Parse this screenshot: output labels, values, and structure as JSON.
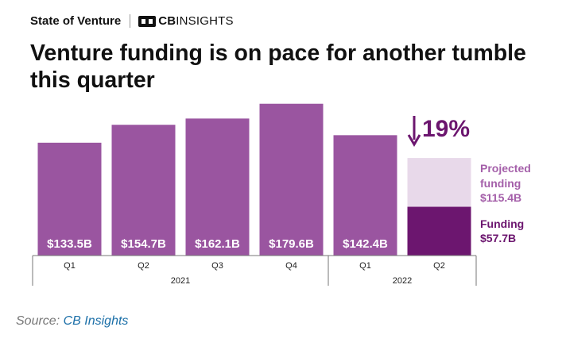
{
  "header": {
    "section": "State of Venture",
    "brand_bold": "CB",
    "brand_light": "INSIGHTS"
  },
  "title_line1": "Venture funding is on pace for another tumble",
  "title_line2": "this quarter",
  "source": {
    "prefix": "Source:",
    "name": "CB Insights"
  },
  "colors": {
    "bar": "#9a55a0",
    "funding": "#6c166f",
    "projected": "#e8d9ea",
    "projected_label": "#a45fa9",
    "accent": "#6c166f",
    "axis": "#777777"
  },
  "chart_data": {
    "type": "bar",
    "title": "Venture funding is on pace for another tumble this quarter",
    "categories": [
      "Q1",
      "Q2",
      "Q3",
      "Q4",
      "Q1",
      "Q2"
    ],
    "year_groups": [
      {
        "label": "2021",
        "span": 4
      },
      {
        "label": "2022",
        "span": 2
      }
    ],
    "unit": "$B",
    "ylim": [
      0,
      185
    ],
    "series": [
      {
        "values": [
          133.5,
          154.7,
          162.1,
          179.6,
          142.4,
          57.7
        ]
      },
      {
        "values": [
          null,
          null,
          null,
          null,
          null,
          115.4
        ]
      }
    ],
    "data_labels": [
      "$133.5B",
      "$154.7B",
      "$162.1B",
      "$179.6B",
      "$142.4B"
    ],
    "annotation": {
      "text": "19%",
      "direction": "down"
    },
    "legend": [
      {
        "line1": "Projected",
        "line2": "funding",
        "value": "$115.4B"
      },
      {
        "line1": "Funding",
        "value": "$57.7B"
      }
    ],
    "grid": false
  }
}
